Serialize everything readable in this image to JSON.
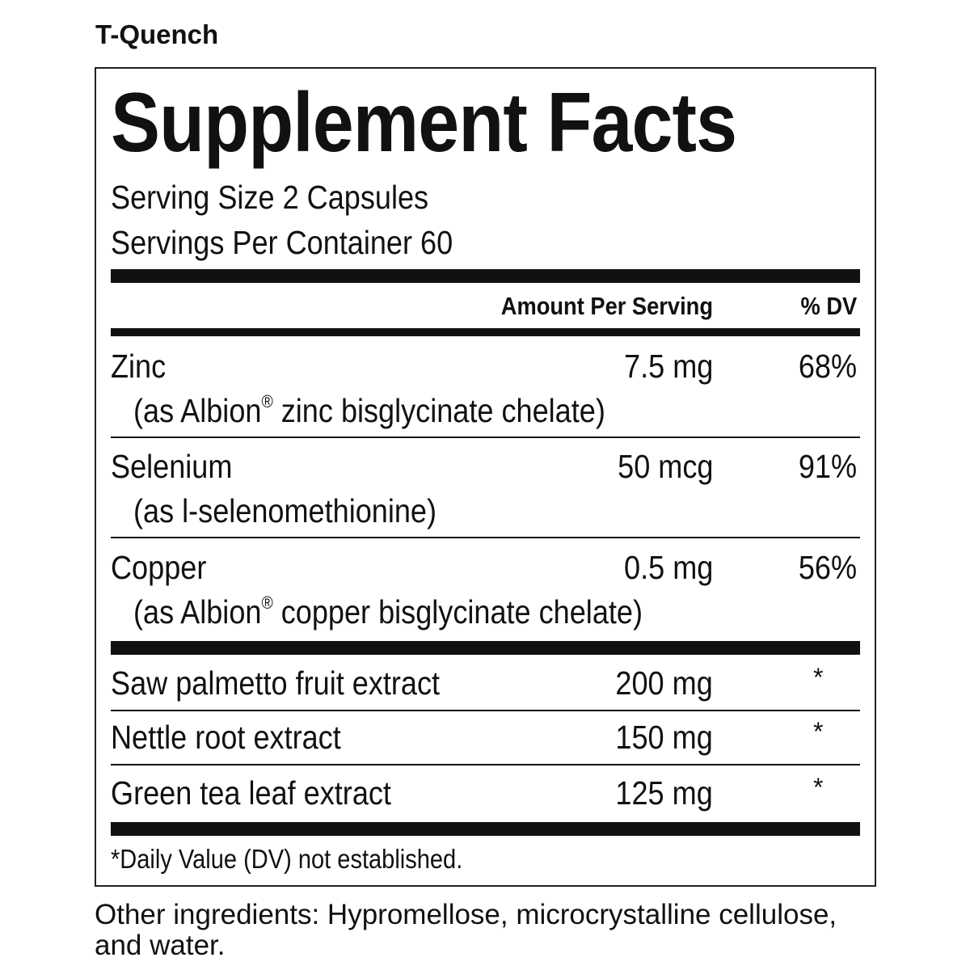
{
  "product_name": "T-Quench",
  "title": "Supplement Facts",
  "serving_size": "Serving Size 2 Capsules",
  "servings_per_container": "Servings Per Container 60",
  "header": {
    "amount": "Amount Per Serving",
    "dv": "% DV"
  },
  "nutrients": [
    {
      "name": "Zinc",
      "amount": "7.5 mg",
      "dv": "68%",
      "source_pre": "(as Albion",
      "source_mark": "®",
      "source_post": " zinc bisglycinate chelate)"
    },
    {
      "name": "Selenium",
      "amount": "50 mcg",
      "dv": "91%",
      "source_pre": "(as l-selenomethionine)"
    },
    {
      "name": "Copper",
      "amount": "0.5 mg",
      "dv": "56%",
      "source_pre": "(as Albion",
      "source_mark": "®",
      "source_post": " copper bisglycinate chelate)"
    }
  ],
  "botanicals": [
    {
      "name": "Saw palmetto fruit extract",
      "amount": "200 mg",
      "dv": "*"
    },
    {
      "name": "Nettle root extract",
      "amount": "150 mg",
      "dv": "*"
    },
    {
      "name": "Green tea leaf extract",
      "amount": "125 mg",
      "dv": "*"
    }
  ],
  "footnote": "*Daily Value (DV) not established.",
  "other_ingredients": "Other ingredients: Hypromellose, microcrystalline cellulose, and water."
}
